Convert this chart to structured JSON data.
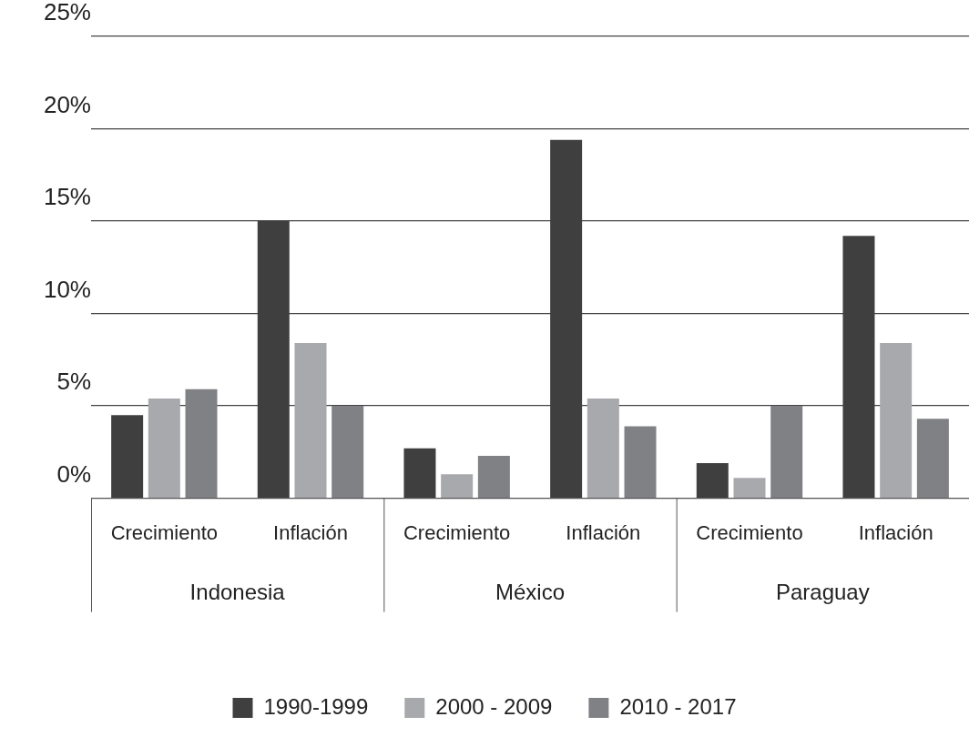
{
  "chart_data": {
    "type": "bar",
    "categories": [
      "Crecimiento",
      "Inflación",
      "Crecimiento",
      "Inflación",
      "Crecimiento",
      "Inflación"
    ],
    "series": [
      {
        "name": "1990-1999",
        "color": "#3f3f3f",
        "values": [
          4.5,
          15.0,
          2.7,
          19.4,
          1.9,
          14.2
        ]
      },
      {
        "name": "2000 - 2009",
        "color": "#a8a9ad",
        "values": [
          5.4,
          8.4,
          1.3,
          5.4,
          1.1,
          8.4
        ]
      },
      {
        "name": "2010 - 2017",
        "color": "#808185",
        "values": [
          5.9,
          5.0,
          2.3,
          3.9,
          5.0,
          4.3
        ]
      }
    ],
    "ylim": [
      0,
      25
    ],
    "yticks": [
      {
        "value": 0,
        "label": "0%"
      },
      {
        "value": 5,
        "label": "5%"
      },
      {
        "value": 10,
        "label": "10%"
      },
      {
        "value": 15,
        "label": "15%"
      },
      {
        "value": 20,
        "label": "20%"
      },
      {
        "value": 25,
        "label": "25%"
      }
    ],
    "annotations": [
      "Indonesia",
      "México",
      "Paraguay"
    ],
    "grid": "y",
    "legend": "bottom"
  }
}
